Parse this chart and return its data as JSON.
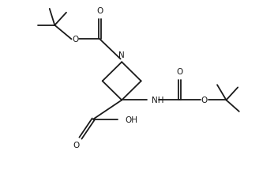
{
  "bg_color": "#ffffff",
  "line_color": "#1a1a1a",
  "line_width": 1.3,
  "font_size": 7.5,
  "figsize": [
    3.28,
    2.26
  ],
  "dpi": 100,
  "xlim": [
    0,
    10
  ],
  "ylim": [
    0,
    7
  ]
}
